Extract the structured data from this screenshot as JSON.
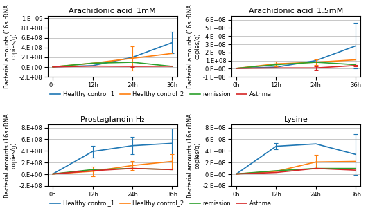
{
  "chart_data": [
    {
      "type": "line",
      "title": "Arachidonic acid_1mM",
      "x": [
        0,
        12,
        24,
        36
      ],
      "xlim": [
        -1.5,
        37.5
      ],
      "xticks": [
        {
          "value": 0,
          "label": "0h"
        },
        {
          "value": 12,
          "label": "12h"
        },
        {
          "value": 24,
          "label": "24h"
        },
        {
          "value": 36,
          "label": "36h"
        }
      ],
      "ylabel": "Bacterial amounts (16s rRNA\ncopies/g)",
      "series": [
        {
          "name": "Healthy control_1",
          "values": [
            5000000,
            30000000,
            200000000,
            500000000
          ],
          "yerr": [
            0,
            0,
            0,
            220000000
          ]
        },
        {
          "name": "Healthy control_2",
          "values": [
            5000000,
            80000000,
            180000000,
            280000000
          ],
          "yerr": [
            0,
            0,
            250000000,
            0
          ]
        },
        {
          "name": "remission",
          "values": [
            5000000,
            80000000,
            100000000,
            15000000
          ],
          "yerr": [
            0,
            0,
            0,
            0
          ]
        },
        {
          "name": "Asthma",
          "values": [
            5000000,
            20000000,
            15000000,
            18000000
          ],
          "yerr": [
            0,
            0,
            10000000,
            0
          ]
        }
      ],
      "ylim": [
        -200000000,
        1050000000
      ],
      "yticks": [
        {
          "value": -200000000,
          "label": "-2.E+08"
        },
        {
          "value": 0,
          "label": "0.E+00"
        },
        {
          "value": 200000000,
          "label": "2.E+08"
        },
        {
          "value": 400000000,
          "label": "4.E+08"
        },
        {
          "value": 600000000,
          "label": "6.E+08"
        },
        {
          "value": 800000000,
          "label": "8.E+08"
        },
        {
          "value": 1000000000,
          "label": "1.E+09"
        }
      ],
      "grid": true,
      "legend": "upper left"
    },
    {
      "type": "line",
      "title": "Arachidonic acid_1.5mM",
      "x": [
        0,
        12,
        24,
        36
      ],
      "xlim": [
        -1.5,
        37.5
      ],
      "xticks": [
        {
          "value": 0,
          "label": "0h"
        },
        {
          "value": 12,
          "label": "12h"
        },
        {
          "value": 24,
          "label": "24h"
        },
        {
          "value": 36,
          "label": "36h"
        }
      ],
      "ylabel": "Bacterial amounts (16s rRNA\ncopies/g)",
      "series": [
        {
          "name": "Healthy control_1",
          "values": [
            5000000,
            20000000,
            100000000,
            280000000
          ],
          "yerr": [
            0,
            0,
            0,
            280000000
          ]
        },
        {
          "name": "Healthy control_2",
          "values": [
            5000000,
            60000000,
            80000000,
            110000000
          ],
          "yerr": [
            0,
            30000000,
            30000000,
            0
          ]
        },
        {
          "name": "remission",
          "values": [
            5000000,
            50000000,
            80000000,
            50000000
          ],
          "yerr": [
            0,
            0,
            0,
            0
          ]
        },
        {
          "name": "Asthma",
          "values": [
            5000000,
            10000000,
            10000000,
            40000000
          ],
          "yerr": [
            0,
            0,
            20000000,
            10000000
          ]
        }
      ],
      "ylim": [
        -100000000,
        650000000
      ],
      "yticks": [
        {
          "value": -100000000,
          "label": "-1.E+08"
        },
        {
          "value": 0,
          "label": "0.E+00"
        },
        {
          "value": 100000000,
          "label": "1.E+08"
        },
        {
          "value": 200000000,
          "label": "2.E+08"
        },
        {
          "value": 300000000,
          "label": "3.E+08"
        },
        {
          "value": 400000000,
          "label": "4.E+08"
        },
        {
          "value": 500000000,
          "label": "5.E+08"
        },
        {
          "value": 600000000,
          "label": "6.E+08"
        }
      ],
      "grid": true
    },
    {
      "type": "line",
      "title": "Prostaglandin H₂",
      "x": [
        0,
        12,
        24,
        36
      ],
      "xlim": [
        -1.5,
        37.5
      ],
      "xticks": [
        {
          "value": 0,
          "label": "0h"
        },
        {
          "value": 12,
          "label": "12h"
        },
        {
          "value": 24,
          "label": "24h"
        },
        {
          "value": 36,
          "label": "36h"
        }
      ],
      "ylabel": "Bacterial amounts (16s rRNA\ncopies/g)",
      "series": [
        {
          "name": "Healthy control_1",
          "values": [
            5000000,
            390000000,
            490000000,
            530000000
          ],
          "yerr": [
            0,
            100000000,
            150000000,
            250000000
          ]
        },
        {
          "name": "Healthy control_2",
          "values": [
            5000000,
            50000000,
            150000000,
            220000000
          ],
          "yerr": [
            0,
            80000000,
            80000000,
            120000000
          ]
        },
        {
          "name": "remission",
          "values": [
            5000000,
            80000000,
            100000000,
            80000000
          ],
          "yerr": [
            0,
            0,
            0,
            0
          ]
        },
        {
          "name": "Asthma",
          "values": [
            5000000,
            60000000,
            100000000,
            80000000
          ],
          "yerr": [
            0,
            0,
            0,
            0
          ]
        }
      ],
      "ylim": [
        -200000000,
        850000000
      ],
      "yticks": [
        {
          "value": -200000000,
          "label": "-2.E+08"
        },
        {
          "value": 0,
          "label": "0.E+00"
        },
        {
          "value": 200000000,
          "label": "2.E+08"
        },
        {
          "value": 400000000,
          "label": "4.E+08"
        },
        {
          "value": 600000000,
          "label": "6.E+08"
        },
        {
          "value": 800000000,
          "label": "8.E+08"
        }
      ],
      "grid": true,
      "legend": "upper left"
    },
    {
      "type": "line",
      "title": "Lysine",
      "x": [
        0,
        12,
        24,
        36
      ],
      "xlim": [
        -1.5,
        37.5
      ],
      "xticks": [
        {
          "value": 0,
          "label": "0h"
        },
        {
          "value": 12,
          "label": "12h"
        },
        {
          "value": 24,
          "label": "24h"
        },
        {
          "value": 36,
          "label": "36h"
        }
      ],
      "ylabel": "Bacterial amounts (16s rRNA\ncopies/g)",
      "series": [
        {
          "name": "Healthy control_1",
          "values": [
            5000000,
            480000000,
            520000000,
            340000000
          ],
          "yerr": [
            0,
            50000000,
            0,
            350000000
          ]
        },
        {
          "name": "Healthy control_2",
          "values": [
            5000000,
            50000000,
            210000000,
            220000000
          ],
          "yerr": [
            0,
            0,
            120000000,
            0
          ]
        },
        {
          "name": "remission",
          "values": [
            5000000,
            60000000,
            100000000,
            100000000
          ],
          "yerr": [
            0,
            0,
            0,
            0
          ]
        },
        {
          "name": "Asthma",
          "values": [
            5000000,
            30000000,
            100000000,
            70000000
          ],
          "yerr": [
            0,
            0,
            0,
            0
          ]
        }
      ],
      "ylim": [
        -200000000,
        850000000
      ],
      "yticks": [
        {
          "value": -200000000,
          "label": "-2.E+08"
        },
        {
          "value": 0,
          "label": "0.E+00"
        },
        {
          "value": 200000000,
          "label": "2.E+08"
        },
        {
          "value": 400000000,
          "label": "4.E+08"
        },
        {
          "value": 600000000,
          "label": "6.E+08"
        },
        {
          "value": 800000000,
          "label": "8.E+08"
        }
      ],
      "grid": true
    }
  ]
}
